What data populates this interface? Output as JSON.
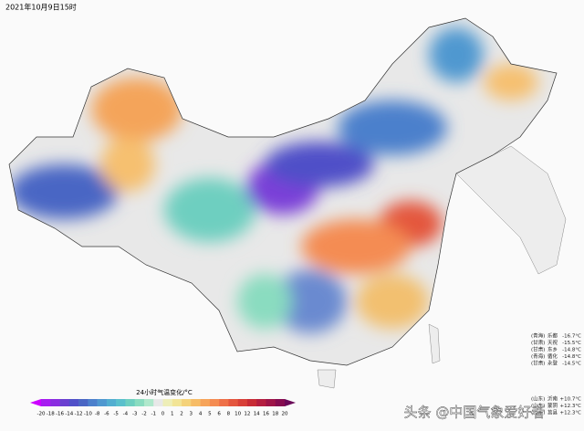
{
  "header": {
    "title": "2021年10月9日15时"
  },
  "legend": {
    "title": "24小时气温变化/°C",
    "ticks": [
      -20,
      -18,
      -16,
      -14,
      -12,
      -10,
      -8,
      -6,
      -5,
      -4,
      -3,
      -2,
      -1,
      0,
      1,
      2,
      3,
      4,
      5,
      6,
      8,
      10,
      12,
      14,
      16,
      18,
      20
    ],
    "colors": [
      "#cc00ff",
      "#a61cf0",
      "#8a2de0",
      "#6a3fd0",
      "#5050c8",
      "#4a66c4",
      "#4c80cc",
      "#4f98d0",
      "#52aed0",
      "#5ac0cc",
      "#6ecfc0",
      "#8adcc0",
      "#b0e8cc",
      "#e8e8e8",
      "#eeeeb8",
      "#f2e496",
      "#f4d27a",
      "#f6bc66",
      "#f6a45a",
      "#f48c52",
      "#ee7048",
      "#e4563e",
      "#d84038",
      "#c82c36",
      "#b41e40",
      "#9e1448",
      "#860c50",
      "#6a0858"
    ]
  },
  "stations": {
    "cold": [
      {
        "province": "(青海)",
        "name": "乐都",
        "value": "-16.7°C"
      },
      {
        "province": "(甘肃)",
        "name": "天祝",
        "value": "-15.5°C"
      },
      {
        "province": "(甘肃)",
        "name": "东乡",
        "value": "-14.8°C"
      },
      {
        "province": "(青海)",
        "name": "循化",
        "value": "-14.8°C"
      },
      {
        "province": "(甘肃)",
        "name": "永登",
        "value": "-14.5°C"
      }
    ],
    "warm": [
      {
        "province": "(山东)",
        "name": "沂南",
        "value": "+10.7°C"
      },
      {
        "province": "(山东)",
        "name": "蒙阴",
        "value": "+12.3°C"
      },
      {
        "province": "(山东)",
        "name": "莒县",
        "value": "+12.3°C"
      }
    ]
  },
  "watermark": "头条 @中国气象爱好者"
}
